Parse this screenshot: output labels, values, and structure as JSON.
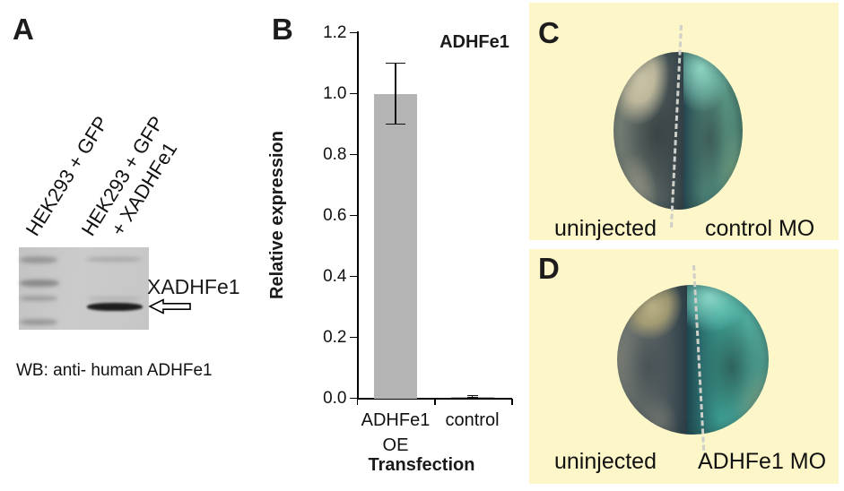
{
  "panel_a": {
    "label": "A",
    "lane1_label": "HEK293 + GFP",
    "lane2_label_line1": "HEK293 + GFP",
    "lane2_label_line2": "+ XADHFe1",
    "band_label": "XADHFe1",
    "caption": "WB: anti- human ADHFe1"
  },
  "panel_b": {
    "label": "B"
  },
  "panel_c": {
    "label": "C",
    "left_label": "uninjected",
    "right_label": "control MO",
    "background": "#fcf6c8"
  },
  "panel_d": {
    "label": "D",
    "left_label": "uninjected",
    "right_label": "ADHFe1 MO",
    "background": "#fcf6c8"
  },
  "chart_data": {
    "type": "bar",
    "title": "ADHFe1",
    "ylabel": "Relative expression",
    "xlabel": "Transfection",
    "categories": [
      [
        "ADHFe1",
        "OE"
      ],
      [
        "control"
      ]
    ],
    "values": [
      1.0,
      0.005
    ],
    "errors": [
      0.1,
      0.004
    ],
    "ylim": [
      0,
      1.2
    ],
    "yticks": [
      0.0,
      0.2,
      0.4,
      0.6,
      0.8,
      1.0,
      1.2
    ],
    "bar_color": "#b4b4b4",
    "grid": false,
    "legend": null
  }
}
